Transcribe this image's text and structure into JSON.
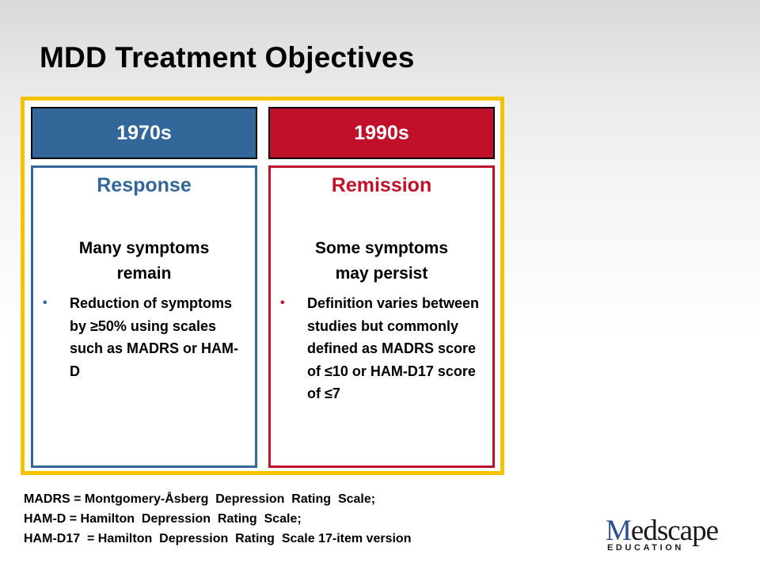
{
  "slide": {
    "title": "MDD Treatment Objectives"
  },
  "colors": {
    "blue": "#336699",
    "red": "#c0102a",
    "frame_gold": "#f4c200"
  },
  "columns": [
    {
      "era": "1970s",
      "heading": "Response",
      "subtitle_line1": "Many symptoms",
      "subtitle_line2": "remain",
      "bullet": "Reduction of symptoms by ≥50% using scales such as MADRS or HAM-D"
    },
    {
      "era": "1990s",
      "heading": "Remission",
      "subtitle_line1": "Some symptoms",
      "subtitle_line2": "may persist",
      "bullet": "Definition varies between studies but commonly defined as MADRS score of ≤10 or HAM-D17 score of ≤7"
    }
  ],
  "bullet_glyph": "•",
  "footnotes": [
    "MADRS = Montgomery-Åsberg  Depression  Rating  Scale;",
    "HAM-D = Hamilton  Depression  Rating  Scale;",
    "HAM-D17  = Hamilton  Depression  Rating  Scale 17-item version"
  ],
  "logo": {
    "brand_first": "M",
    "brand_rest": "edscape",
    "sub": "EDUCATION"
  }
}
